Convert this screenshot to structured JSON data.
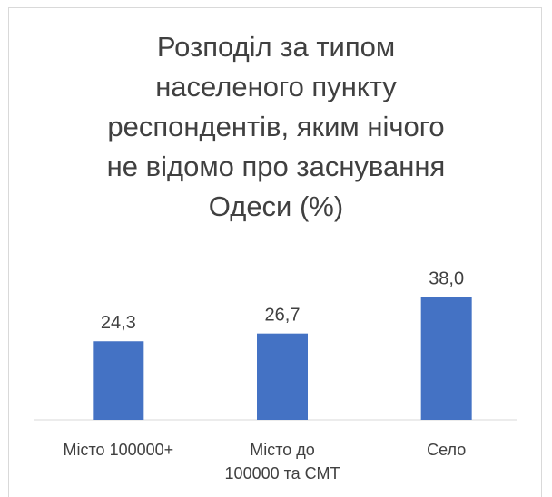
{
  "chart_data": {
    "type": "bar",
    "title": "Розподіл за типом\nнаселеного пункту\nреспондентів, яким нічого\nне відомо про заснування\nОдеси (%)",
    "categories": [
      "Місто 100000+",
      "Місто до\n100000 та СМТ",
      "Село"
    ],
    "values": [
      24.3,
      26.7,
      38.0
    ],
    "value_labels": [
      "24,3",
      "26,7",
      "38,0"
    ],
    "color": "#4472c4"
  }
}
